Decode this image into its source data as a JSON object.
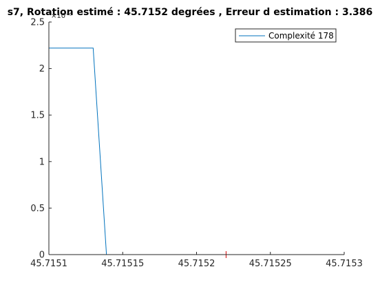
{
  "chart_data": {
    "type": "line",
    "title": "s7, Rotation estimé : 45.7152 degrées , Erreur d estimation : 3.386",
    "xlabel": "",
    "ylabel": "",
    "exponent_label": "×10⁻⁶",
    "xlim": [
      45.7151,
      45.7153
    ],
    "ylim": [
      0,
      2.5e-06
    ],
    "x_ticks": [
      45.7151,
      45.71515,
      45.7152,
      45.71525,
      45.7153
    ],
    "x_tick_labels": [
      "45.7151",
      "45.71515",
      "45.7152",
      "45.71525",
      "45.7153"
    ],
    "y_ticks": [
      0,
      5e-07,
      1e-06,
      1.5e-06,
      2e-06,
      2.5e-06
    ],
    "y_tick_labels": [
      "0",
      "0.5",
      "1",
      "1.5",
      "2",
      "2.5"
    ],
    "grid": false,
    "legend_position": "top-right",
    "series": [
      {
        "name": "Complexité 178",
        "color": "#0072BD",
        "x": [
          45.7151,
          45.71513,
          45.715139,
          45.7153
        ],
        "y": [
          2.22e-06,
          2.22e-06,
          0,
          0
        ]
      }
    ],
    "marker": {
      "x": 45.71522,
      "y": 0,
      "symbol": "+",
      "color": "#D40000"
    }
  }
}
